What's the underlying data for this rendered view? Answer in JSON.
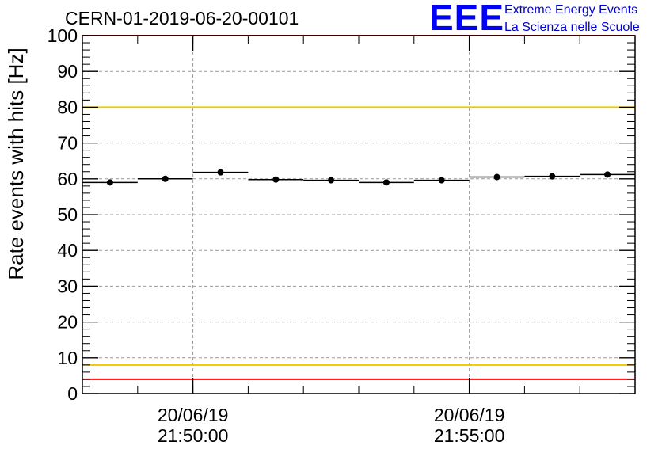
{
  "header": {
    "run_id": "CERN-01-2019-06-20-00101",
    "logo_mark": "EEE",
    "logo_line1": "Extreme Energy Events",
    "logo_line2": "La Scienza nelle Scuole"
  },
  "colors": {
    "red_limit": "#ff0000",
    "yellow_limit": "#f0c800",
    "points": "#000000",
    "grid": "#999999",
    "logo": "#0000ff"
  },
  "chart_data": {
    "type": "scatter",
    "title": "",
    "xlabel": "",
    "ylabel": "Rate events with hits [Hz]",
    "x_unit": "seconds from 21:48:00",
    "xlim": [
      0,
      600
    ],
    "ylim": [
      0,
      100
    ],
    "yticks": [
      0,
      10,
      20,
      30,
      40,
      50,
      60,
      70,
      80,
      90,
      100
    ],
    "xticks": [
      {
        "value": 120,
        "date": "20/06/19",
        "time": "21:50:00"
      },
      {
        "value": 420,
        "date": "20/06/19",
        "time": "21:55:00"
      }
    ],
    "grid": true,
    "series": [
      {
        "x": [
          30,
          90,
          150,
          210,
          270,
          330,
          390,
          450,
          510,
          570
        ],
        "xerr": 30,
        "y": [
          59.0,
          60.0,
          61.8,
          59.8,
          59.6,
          59.0,
          59.6,
          60.5,
          60.7,
          61.2
        ],
        "yerr": [
          0.7,
          0.7,
          0.7,
          0.7,
          0.7,
          0.7,
          0.7,
          0.7,
          0.7,
          0.7
        ]
      }
    ],
    "reference_lines": [
      {
        "y": 100,
        "color": "red"
      },
      {
        "y": 80,
        "color": "yellow"
      },
      {
        "y": 8,
        "color": "yellow"
      },
      {
        "y": 4,
        "color": "red"
      }
    ]
  }
}
